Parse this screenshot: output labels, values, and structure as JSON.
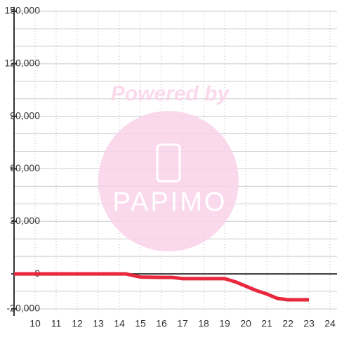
{
  "chart_data": {
    "type": "line",
    "watermark": {
      "line1": "Powered by",
      "line2": "PAPIMO"
    },
    "x": [
      9,
      10,
      11,
      12,
      13,
      14,
      14.3,
      15,
      16,
      16.5,
      17,
      18,
      19,
      19.5,
      20,
      20.5,
      21,
      21.5,
      22,
      23
    ],
    "series": [
      {
        "color": "#e8283c",
        "values": [
          0,
          0,
          0,
          0,
          0,
          0,
          0,
          -1800,
          -2000,
          -2000,
          -2700,
          -2700,
          -2700,
          -4500,
          -7000,
          -9500,
          -11500,
          -14000,
          -14800,
          -14800
        ]
      }
    ],
    "xlim": [
      9,
      24.33
    ],
    "ylim": [
      -20000,
      150000
    ],
    "xticks": [
      10,
      11,
      12,
      13,
      14,
      15,
      16,
      17,
      18,
      19,
      20,
      21,
      22,
      23,
      24
    ],
    "yticks": [
      {
        "value": -20000,
        "label": "-20,000"
      },
      0,
      {
        "value": 30000,
        "label": "30,000"
      },
      {
        "value": 60000,
        "label": "60,000"
      },
      {
        "value": 90000,
        "label": "90,000"
      },
      {
        "value": 120000,
        "label": "120,000"
      },
      {
        "value": 150000,
        "label": "150,000"
      }
    ],
    "y_minor_grid": [
      -10000,
      10000,
      20000,
      40000,
      50000,
      70000,
      80000,
      100000,
      110000,
      130000,
      140000
    ],
    "grid": true
  }
}
